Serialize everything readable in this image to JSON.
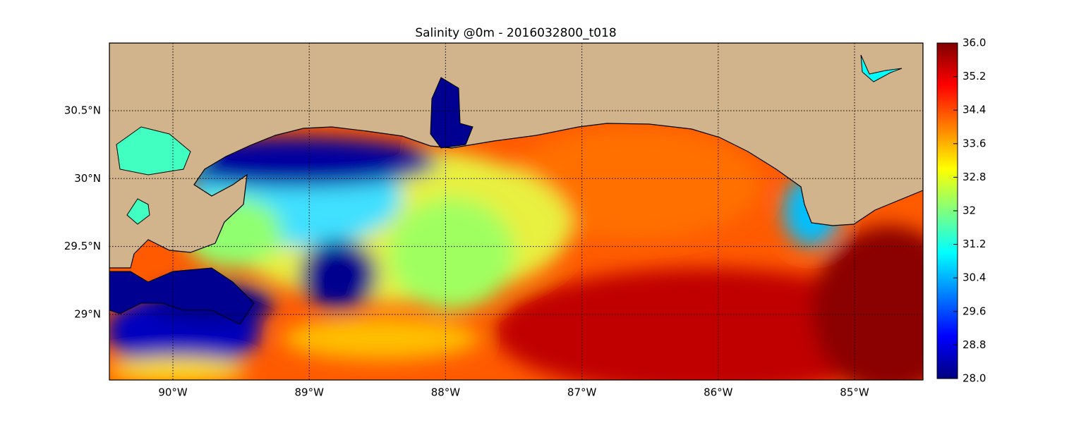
{
  "title": "Salinity @0m - 2016032800_t018",
  "map": {
    "lonlim": [
      -90.466,
      -84.498
    ],
    "latlim": [
      28.517,
      30.998
    ],
    "lonticks": [
      {
        "value": -90,
        "label": "90°W"
      },
      {
        "value": -89,
        "label": "89°W"
      },
      {
        "value": -88,
        "label": "88°W"
      },
      {
        "value": -87,
        "label": "87°W"
      },
      {
        "value": -86,
        "label": "86°W"
      },
      {
        "value": -85,
        "label": "85°W"
      }
    ],
    "latticks": [
      {
        "value": 29,
        "label": "29°N"
      },
      {
        "value": 29.5,
        "label": "29.5°N"
      },
      {
        "value": 30,
        "label": "30°N"
      },
      {
        "value": 30.5,
        "label": "30.5°N"
      }
    ],
    "grid": true,
    "land_color": "#d2b48c"
  },
  "colorbar": {
    "lim": [
      28,
      36
    ],
    "colormap": "jet",
    "ticks": [
      {
        "value": 28,
        "label": "28.0"
      },
      28.8,
      29.6,
      30.4,
      31.2,
      32.0,
      32.8,
      33.6,
      34.4,
      35.2,
      {
        "value": 36,
        "label": "36.0"
      }
    ]
  }
}
